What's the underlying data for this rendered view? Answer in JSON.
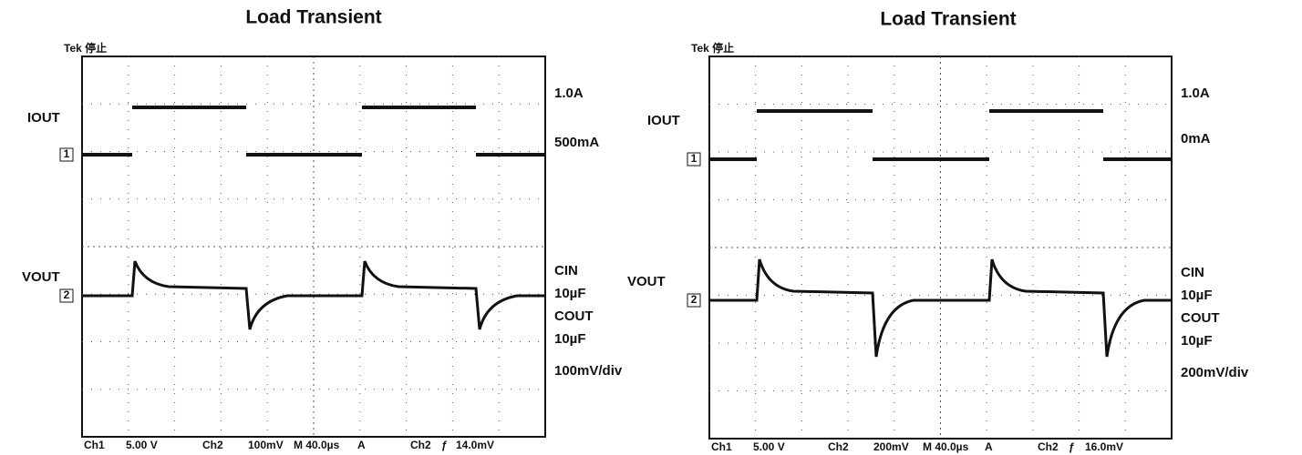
{
  "panels": [
    {
      "title": "Load Transient",
      "status": "Tek 停止",
      "iout_label": "IOUT",
      "vout_label": "VOUT",
      "ch1_marker": "1",
      "ch2_marker": "2",
      "right_labels": [
        "1.0A",
        "500mA",
        "CIN",
        "10µF",
        "COUT",
        "10µF",
        "100mV/div"
      ],
      "footer": [
        "Ch1",
        "5.00 V",
        "Ch2",
        "100mV",
        "M 40.0µs",
        "A",
        "Ch2",
        "ƒ",
        "14.0mV"
      ]
    },
    {
      "title": "Load Transient",
      "status": "Tek 停止",
      "iout_label": "IOUT",
      "vout_label": "VOUT",
      "ch1_marker": "1",
      "ch2_marker": "2",
      "right_labels": [
        "1.0A",
        "0mA",
        "CIN",
        "10µF",
        "COUT",
        "10µF",
        "200mV/div"
      ],
      "footer": [
        "Ch1",
        "5.00 V",
        "Ch2",
        "200mV",
        "M 40.0µs",
        "A",
        "Ch2",
        "ƒ",
        "16.0mV"
      ]
    }
  ]
}
